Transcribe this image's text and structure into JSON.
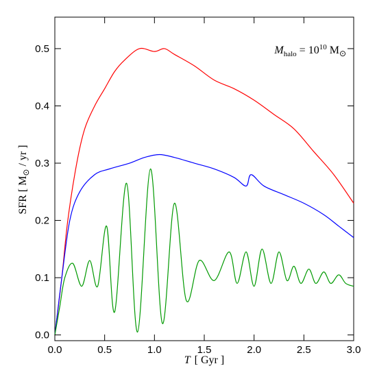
{
  "chart_data": {
    "type": "line",
    "annotation": {
      "symbol": "M",
      "subscript": "halo",
      "equals": "= 10",
      "exponent": "10",
      "unit": "M",
      "unit_subscript": "⊙"
    },
    "xlabel": {
      "symbol": "T",
      "unit": "[ Gyr ]"
    },
    "ylabel": {
      "text": "SFR  [ M",
      "subscript": "⊙",
      "unit": "/ yr ]"
    },
    "xlim": [
      0,
      3.0
    ],
    "ylim": [
      -0.01,
      0.555
    ],
    "xticks": [
      {
        "value": 0,
        "label": "0.0"
      },
      {
        "value": 0.5,
        "label": "0.5"
      },
      {
        "value": 1,
        "label": "1.0"
      },
      {
        "value": 1.5,
        "label": "1.5"
      },
      {
        "value": 2,
        "label": "2.0"
      },
      {
        "value": 2.5,
        "label": "2.5"
      },
      {
        "value": 3,
        "label": "3.0"
      }
    ],
    "yticks": [
      {
        "value": 0,
        "label": "0.0"
      },
      0.1,
      0.2,
      0.3,
      0.4,
      0.5
    ],
    "series": [
      {
        "color": "#ff0000",
        "x": [
          0,
          0.07,
          0.13,
          0.22,
          0.3,
          0.4,
          0.5,
          0.6,
          0.7,
          0.85,
          1.0,
          1.1,
          1.2,
          1.4,
          1.6,
          1.8,
          2.0,
          2.2,
          2.4,
          2.6,
          2.8,
          3.0
        ],
        "values": [
          0,
          0.1,
          0.2,
          0.3,
          0.36,
          0.4,
          0.43,
          0.46,
          0.48,
          0.5,
          0.495,
          0.5,
          0.49,
          0.47,
          0.445,
          0.43,
          0.41,
          0.385,
          0.36,
          0.32,
          0.28,
          0.23
        ]
      },
      {
        "color": "#0000ff",
        "x": [
          0,
          0.07,
          0.15,
          0.25,
          0.4,
          0.55,
          0.75,
          0.9,
          1.05,
          1.2,
          1.4,
          1.6,
          1.8,
          1.92,
          1.97,
          2.1,
          2.3,
          2.5,
          2.7,
          2.85,
          3.0
        ],
        "values": [
          0,
          0.1,
          0.2,
          0.25,
          0.28,
          0.29,
          0.3,
          0.31,
          0.315,
          0.31,
          0.3,
          0.29,
          0.275,
          0.26,
          0.28,
          0.26,
          0.245,
          0.23,
          0.21,
          0.19,
          0.17
        ]
      },
      {
        "color": "#009900",
        "x": [
          0,
          0.05,
          0.1,
          0.18,
          0.27,
          0.35,
          0.43,
          0.52,
          0.6,
          0.72,
          0.83,
          0.96,
          1.08,
          1.2,
          1.32,
          1.45,
          1.6,
          1.75,
          1.83,
          1.92,
          2.0,
          2.08,
          2.17,
          2.25,
          2.33,
          2.4,
          2.47,
          2.55,
          2.62,
          2.7,
          2.77,
          2.85,
          2.92,
          3.0
        ],
        "values": [
          0,
          0.05,
          0.1,
          0.125,
          0.085,
          0.13,
          0.085,
          0.19,
          0.04,
          0.265,
          0.005,
          0.29,
          0.02,
          0.23,
          0.06,
          0.13,
          0.095,
          0.145,
          0.09,
          0.145,
          0.085,
          0.15,
          0.09,
          0.145,
          0.095,
          0.12,
          0.09,
          0.115,
          0.09,
          0.11,
          0.09,
          0.105,
          0.09,
          0.085
        ]
      }
    ]
  }
}
